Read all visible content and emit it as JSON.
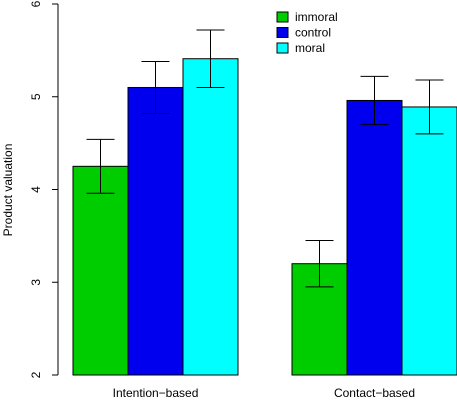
{
  "chart_data": {
    "type": "bar",
    "y_label": "Product valuation",
    "categories": [
      "Intention−based",
      "Contact−based"
    ],
    "series": [
      {
        "name": "immoral",
        "color": "#00cd00",
        "values": [
          4.25,
          3.2
        ],
        "errors": [
          0.29,
          0.25
        ]
      },
      {
        "name": "control",
        "color": "#0000ee",
        "values": [
          5.1,
          4.96
        ],
        "errors": [
          0.28,
          0.26
        ]
      },
      {
        "name": "moral",
        "color": "#00ffff",
        "values": [
          5.41,
          4.89
        ],
        "errors": [
          0.31,
          0.29
        ]
      }
    ],
    "ylim": [
      2,
      6
    ],
    "yticks": [
      2,
      3,
      4,
      5,
      6
    ],
    "legend": "top"
  }
}
